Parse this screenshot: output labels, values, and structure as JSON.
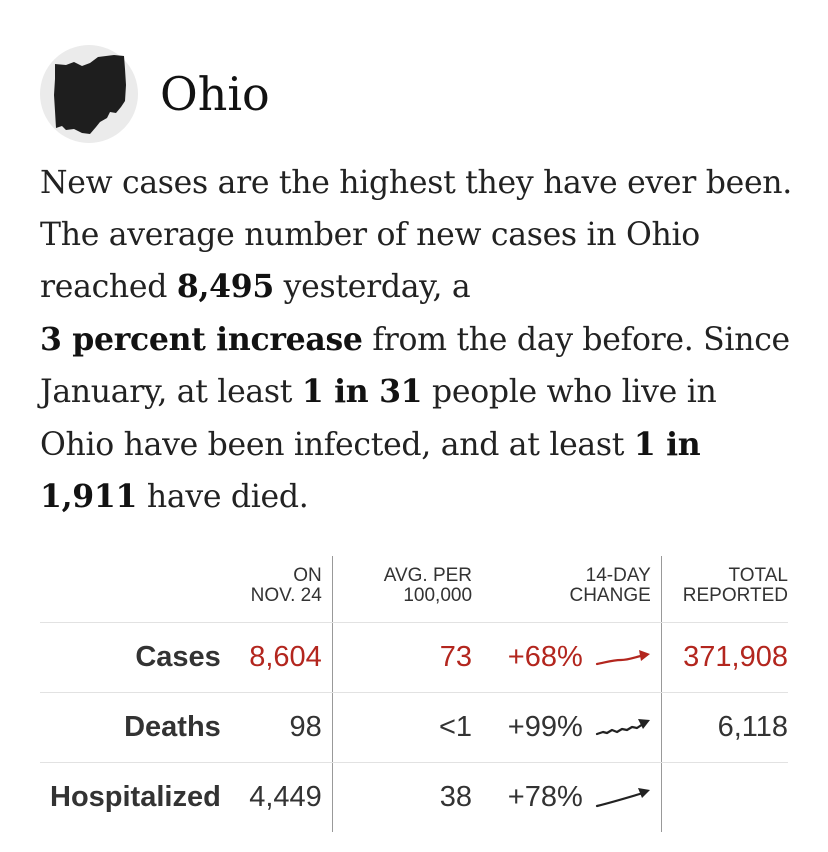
{
  "header": {
    "state_name": "Ohio",
    "state_icon": "ohio-state-shape-icon"
  },
  "summary": {
    "p1": "New cases are the highest they have ever been. The average number of new cases in Ohio reached ",
    "avg_new_cases": "8,495",
    "p2": " yesterday, a ",
    "percent_change": "3 percent increase",
    "p3": " from the day before. Since January, at least ",
    "infected_ratio": "1 in 31",
    "p4": " people who live in Ohio have been infected, and at least ",
    "death_ratio": "1 in 1,911",
    "p5": " have died."
  },
  "table": {
    "headers": {
      "on_line1": "ON",
      "on_line2": "NOV. 24",
      "avg_line1": "AVG. PER",
      "avg_line2": "100,000",
      "change_line1": "14-DAY",
      "change_line2": "CHANGE",
      "total_line1": "TOTAL",
      "total_line2": "REPORTED"
    },
    "rows": [
      {
        "label": "Cases",
        "on_date": "8,604",
        "avg_per_100k": "73",
        "change_14d": "+68%",
        "total": "371,908",
        "trend_icon": "trend-up-arrow-icon"
      },
      {
        "label": "Deaths",
        "on_date": "98",
        "avg_per_100k": "<1",
        "change_14d": "+99%",
        "total": "6,118",
        "trend_icon": "trend-up-arrow-icon"
      },
      {
        "label": "Hospitalized",
        "on_date": "4,449",
        "avg_per_100k": "38",
        "change_14d": "+78%",
        "total": "",
        "trend_icon": "trend-up-arrow-icon"
      }
    ]
  },
  "colors": {
    "cases_red": "#b3261e",
    "text": "#121212",
    "badge_bg": "#ebebeb"
  }
}
